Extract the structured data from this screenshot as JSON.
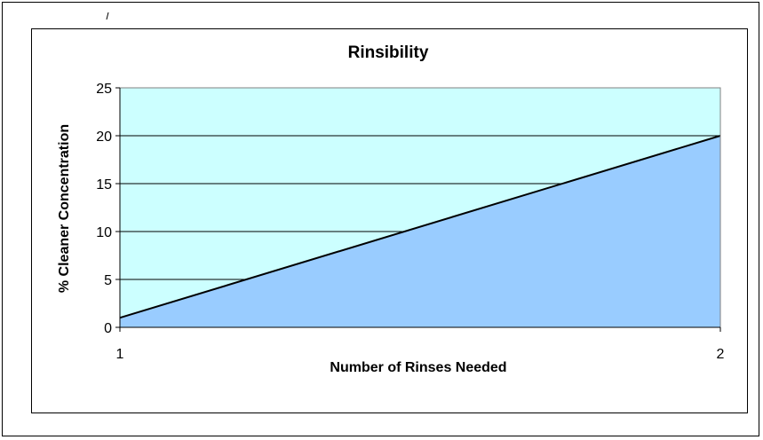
{
  "chart_data": {
    "type": "area",
    "title": "Rinsibility",
    "xlabel": "Number of Rinses Needed",
    "ylabel": "% Cleaner Concentration",
    "x": [
      1,
      2
    ],
    "series": [
      {
        "values": [
          1,
          20
        ]
      }
    ],
    "xlim": [
      1,
      2
    ],
    "ylim": [
      0,
      25
    ],
    "xticks": [
      "1",
      "2"
    ],
    "yticks": [
      "0",
      "5",
      "10",
      "15",
      "20",
      "25"
    ],
    "grid": true,
    "legend": "none",
    "colors": {
      "plot_background": "#ccffff",
      "area_fill": "#99ccff",
      "line": "#000000",
      "gridline": "#000000"
    }
  }
}
